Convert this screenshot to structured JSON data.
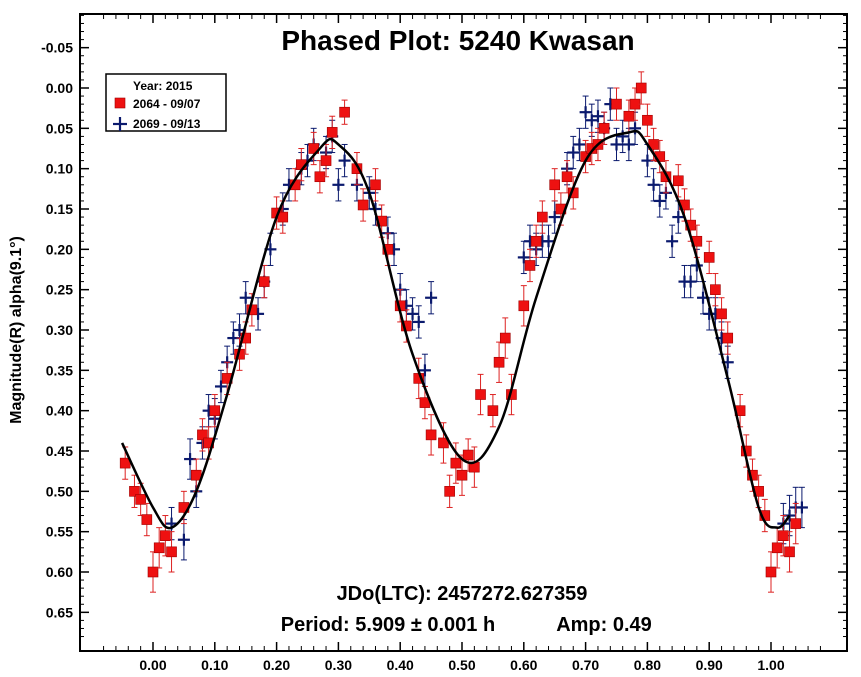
{
  "chart_data": {
    "type": "scatter",
    "title": "Phased Plot: 5240 Kwasan",
    "ylabel": "Magnitude(R) alpha(9.1°)",
    "xlabel": "",
    "xlim": [
      -0.1,
      1.1
    ],
    "ylim": [
      0.7,
      -0.1
    ],
    "y_inverted": true,
    "x_ticks": [
      "0.00",
      "0.10",
      "0.20",
      "0.30",
      "0.40",
      "0.50",
      "0.60",
      "0.70",
      "0.80",
      "0.90",
      "1.00"
    ],
    "x_tick_values": [
      0,
      0.1,
      0.2,
      0.3,
      0.4,
      0.5,
      0.6,
      0.7,
      0.8,
      0.9,
      1.0
    ],
    "y_ticks": [
      "-0.05",
      "0.00",
      "0.05",
      "0.10",
      "0.15",
      "0.20",
      "0.25",
      "0.30",
      "0.35",
      "0.40",
      "0.45",
      "0.50",
      "0.55",
      "0.60",
      "0.65"
    ],
    "y_tick_values": [
      -0.05,
      0,
      0.05,
      0.1,
      0.15,
      0.2,
      0.25,
      0.3,
      0.35,
      0.4,
      0.45,
      0.5,
      0.55,
      0.6,
      0.65
    ],
    "legend": {
      "position": "top-left",
      "header": "Year: 2015",
      "entries": [
        {
          "label": "2064 - 09/07",
          "marker": "square",
          "color": "#ee1111"
        },
        {
          "label": "2069 - 09/13",
          "marker": "plus",
          "color": "#0b1a6e"
        }
      ]
    },
    "annotations": {
      "jdo": "JDo(LTC): 2457272.627359",
      "period": "Period: 5.909 ± 0.001 h",
      "amp": "Amp: 0.49"
    },
    "fit_curve": {
      "color": "#000000",
      "x": [
        -0.05,
        0.0,
        0.03,
        0.07,
        0.12,
        0.2,
        0.27,
        0.3,
        0.35,
        0.42,
        0.5,
        0.56,
        0.62,
        0.7,
        0.77,
        0.8,
        0.86,
        0.93,
        0.98,
        1.01,
        1.03
      ],
      "y": [
        0.44,
        0.52,
        0.545,
        0.5,
        0.38,
        0.16,
        0.075,
        0.07,
        0.13,
        0.33,
        0.46,
        0.42,
        0.26,
        0.09,
        0.055,
        0.07,
        0.16,
        0.36,
        0.52,
        0.545,
        0.53
      ]
    },
    "series": [
      {
        "name": "2064 - 09/07",
        "marker": "square",
        "color": "#ee1111",
        "x": [
          -0.045,
          -0.03,
          -0.02,
          -0.01,
          0.0,
          0.01,
          0.02,
          0.03,
          0.05,
          0.07,
          0.08,
          0.09,
          0.1,
          0.12,
          0.14,
          0.15,
          0.16,
          0.18,
          0.2,
          0.21,
          0.23,
          0.24,
          0.26,
          0.27,
          0.28,
          0.29,
          0.31,
          0.33,
          0.34,
          0.36,
          0.37,
          0.38,
          0.4,
          0.41,
          0.43,
          0.44,
          0.45,
          0.47,
          0.48,
          0.49,
          0.5,
          0.51,
          0.52,
          0.53,
          0.55,
          0.56,
          0.57,
          0.58,
          0.6,
          0.61,
          0.62,
          0.63,
          0.65,
          0.66,
          0.67,
          0.68,
          0.7,
          0.71,
          0.72,
          0.73,
          0.75,
          0.77,
          0.78,
          0.79,
          0.8,
          0.81,
          0.82,
          0.83,
          0.85,
          0.86,
          0.87,
          0.88,
          0.9,
          0.91,
          0.92,
          0.93,
          0.95,
          0.96,
          0.97,
          0.98,
          0.99,
          1.0,
          1.01,
          1.02,
          1.03,
          1.04
        ],
        "y": [
          0.465,
          0.5,
          0.51,
          0.535,
          0.6,
          0.57,
          0.555,
          0.575,
          0.52,
          0.48,
          0.43,
          0.44,
          0.4,
          0.36,
          0.33,
          0.31,
          0.275,
          0.24,
          0.155,
          0.16,
          0.12,
          0.095,
          0.075,
          0.11,
          0.09,
          0.055,
          0.03,
          0.1,
          0.145,
          0.12,
          0.165,
          0.2,
          0.27,
          0.295,
          0.36,
          0.39,
          0.43,
          0.44,
          0.5,
          0.465,
          0.48,
          0.455,
          0.47,
          0.38,
          0.4,
          0.34,
          0.31,
          0.38,
          0.27,
          0.22,
          0.19,
          0.16,
          0.12,
          0.15,
          0.11,
          0.13,
          0.085,
          0.075,
          0.07,
          0.05,
          0.02,
          0.035,
          0.02,
          0.0,
          0.04,
          0.07,
          0.085,
          0.11,
          0.115,
          0.145,
          0.17,
          0.19,
          0.21,
          0.25,
          0.28,
          0.31,
          0.4,
          0.45,
          0.48,
          0.5,
          0.53,
          0.6,
          0.57,
          0.555,
          0.575,
          0.54
        ],
        "err": [
          0.02,
          0.02,
          0.02,
          0.02,
          0.025,
          0.025,
          0.025,
          0.025,
          0.02,
          0.02,
          0.02,
          0.02,
          0.02,
          0.02,
          0.02,
          0.02,
          0.02,
          0.02,
          0.02,
          0.02,
          0.02,
          0.02,
          0.02,
          0.02,
          0.02,
          0.02,
          0.015,
          0.02,
          0.02,
          0.02,
          0.02,
          0.02,
          0.02,
          0.02,
          0.025,
          0.02,
          0.025,
          0.025,
          0.02,
          0.025,
          0.025,
          0.02,
          0.025,
          0.025,
          0.02,
          0.025,
          0.025,
          0.025,
          0.025,
          0.02,
          0.02,
          0.02,
          0.02,
          0.02,
          0.02,
          0.02,
          0.02,
          0.02,
          0.02,
          0.02,
          0.02,
          0.02,
          0.02,
          0.02,
          0.02,
          0.02,
          0.02,
          0.02,
          0.02,
          0.02,
          0.02,
          0.02,
          0.02,
          0.02,
          0.02,
          0.02,
          0.02,
          0.02,
          0.02,
          0.02,
          0.02,
          0.025,
          0.025,
          0.025,
          0.025,
          0.025
        ]
      },
      {
        "name": "2069 - 09/13",
        "marker": "plus",
        "color": "#0b1a6e",
        "x": [
          0.03,
          0.05,
          0.06,
          0.07,
          0.08,
          0.09,
          0.1,
          0.11,
          0.12,
          0.13,
          0.14,
          0.15,
          0.17,
          0.18,
          0.19,
          0.21,
          0.22,
          0.24,
          0.25,
          0.26,
          0.28,
          0.29,
          0.3,
          0.31,
          0.33,
          0.35,
          0.36,
          0.38,
          0.39,
          0.4,
          0.41,
          0.42,
          0.43,
          0.44,
          0.45,
          0.6,
          0.61,
          0.62,
          0.63,
          0.64,
          0.65,
          0.67,
          0.68,
          0.69,
          0.7,
          0.71,
          0.72,
          0.73,
          0.74,
          0.75,
          0.76,
          0.77,
          0.78,
          0.8,
          0.81,
          0.82,
          0.83,
          0.84,
          0.85,
          0.86,
          0.87,
          0.88,
          0.89,
          0.9,
          0.91,
          0.92,
          0.93,
          1.02,
          1.03,
          1.04,
          1.05
        ],
        "y": [
          0.54,
          0.56,
          0.46,
          0.5,
          0.44,
          0.4,
          0.41,
          0.37,
          0.34,
          0.31,
          0.3,
          0.26,
          0.28,
          0.24,
          0.2,
          0.15,
          0.12,
          0.1,
          0.09,
          0.07,
          0.08,
          0.06,
          0.12,
          0.09,
          0.12,
          0.13,
          0.15,
          0.18,
          0.2,
          0.25,
          0.27,
          0.28,
          0.29,
          0.35,
          0.26,
          0.21,
          0.19,
          0.2,
          0.19,
          0.19,
          0.16,
          0.1,
          0.08,
          0.07,
          0.03,
          0.04,
          0.035,
          0.05,
          0.02,
          0.07,
          0.06,
          0.07,
          0.05,
          0.09,
          0.12,
          0.14,
          0.13,
          0.19,
          0.16,
          0.24,
          0.24,
          0.22,
          0.26,
          0.28,
          0.28,
          0.31,
          0.34,
          0.54,
          0.53,
          0.52,
          0.52
        ],
        "err": [
          0.02,
          0.025,
          0.025,
          0.02,
          0.02,
          0.02,
          0.025,
          0.02,
          0.02,
          0.02,
          0.02,
          0.02,
          0.02,
          0.02,
          0.02,
          0.02,
          0.02,
          0.02,
          0.02,
          0.02,
          0.02,
          0.02,
          0.02,
          0.02,
          0.02,
          0.02,
          0.02,
          0.02,
          0.02,
          0.02,
          0.02,
          0.02,
          0.02,
          0.02,
          0.02,
          0.02,
          0.02,
          0.02,
          0.02,
          0.02,
          0.02,
          0.02,
          0.02,
          0.02,
          0.02,
          0.02,
          0.02,
          0.02,
          0.02,
          0.02,
          0.02,
          0.02,
          0.02,
          0.02,
          0.02,
          0.02,
          0.02,
          0.02,
          0.02,
          0.02,
          0.02,
          0.02,
          0.02,
          0.02,
          0.02,
          0.02,
          0.02,
          0.025,
          0.025,
          0.025,
          0.025
        ]
      }
    ]
  }
}
